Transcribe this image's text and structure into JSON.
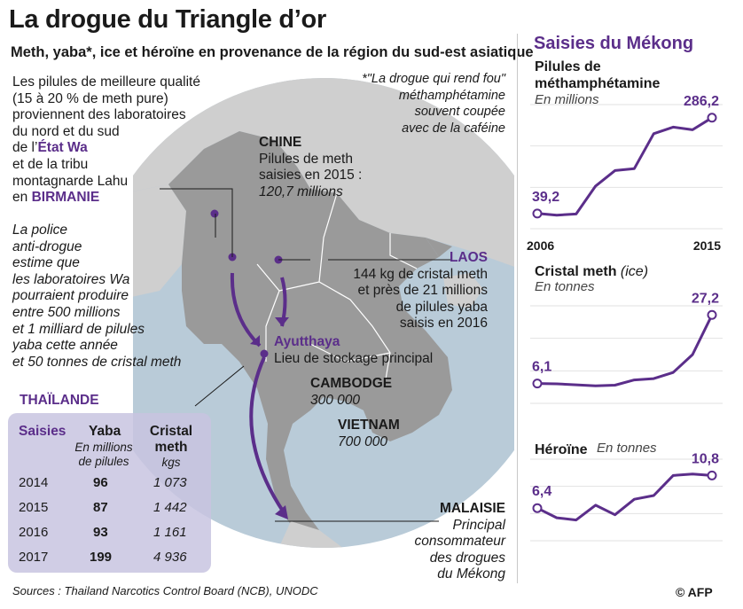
{
  "title": "La drogue du Triangle d’or",
  "subtitle": "Meth, yaba*, ice et héroïne en provenance de la région du sud-est asiatique",
  "left_note": {
    "line1": "Les pilules de meilleure qualité",
    "line2": "(15 à 20 % de meth pure)",
    "line3": "proviennent des laboratoires",
    "line4": "du nord et du sud",
    "line5_prefix": "de l’",
    "line5_kw": "État Wa",
    "line6": "et de la tribu",
    "line7": "montagnarde Lahu",
    "line8_prefix": "en ",
    "line8_kw": "BIRMANIE"
  },
  "footnote": {
    "l1": "*\"La drogue qui rend fou\"",
    "l2": "méthamphétamine",
    "l3": "souvent coupée",
    "l4": "avec de la caféine"
  },
  "police_note": {
    "l1": "La police",
    "l2": "anti-drogue",
    "l3": "estime que",
    "l4": "les laboratoires Wa",
    "l5": "pourraient produire",
    "l6": "entre 500 millions",
    "l7": "et 1 milliard de pilules",
    "l8": "yaba cette année",
    "l9": "et 50 tonnes de cristal meth"
  },
  "map": {
    "chine_name": "CHINE",
    "chine_l1": "Pilules de meth",
    "chine_l2": "saisies en 2015 :",
    "chine_l3": "120,7 millions",
    "laos_name": "LAOS",
    "laos_l1": "144 kg de cristal meth",
    "laos_l2": "et près de 21 millions",
    "laos_l3": "de pilules yaba",
    "laos_l4": "saisis en 2016",
    "ayutthaya_name": "Ayutthaya",
    "ayutthaya_desc": "Lieu de stockage principal",
    "cambodge_name": "CAMBODGE",
    "cambodge_value": "300 000",
    "vietnam_name": "VIETNAM",
    "vietnam_value": "700 000",
    "thailande_name": "THAÏLANDE",
    "malaisie_name": "MALAISIE",
    "malaisie_l1": "Principal",
    "malaisie_l2": "consommateur",
    "malaisie_l3": "des drogues",
    "malaisie_l4": "du Mékong"
  },
  "seizures_table": {
    "col0": "Saisies",
    "col1": "Yaba",
    "col1_sub1": "En millions",
    "col1_sub2": "de pilules",
    "col2": "Cristal",
    "col2b": "meth",
    "col2_sub": "kgs",
    "rows": [
      {
        "year": "2014",
        "yaba": "96",
        "crystal": "1 073"
      },
      {
        "year": "2015",
        "yaba": "87",
        "crystal": "1 442"
      },
      {
        "year": "2016",
        "yaba": "93",
        "crystal": "1 161"
      },
      {
        "year": "2017",
        "yaba": "199",
        "crystal": "4 936"
      }
    ]
  },
  "sources": "Sources : Thailand Narcotics Control Board (NCB), UNODC",
  "copyright": "© AFP",
  "right_title": "Saisies du Mékong",
  "colors": {
    "accent": "#5b2e8a",
    "land": "#9a9a9a",
    "land_other": "#cfcfcf",
    "sea": "#b9cbd8",
    "table_bg": "#c8c4e0"
  },
  "chart_data": [
    {
      "type": "line",
      "title": "Pilules de méthamphétamine",
      "unit": "En millions",
      "x": [
        2006,
        2007,
        2008,
        2009,
        2010,
        2011,
        2012,
        2013,
        2014,
        2015
      ],
      "values": [
        39.2,
        35,
        38,
        110,
        150,
        155,
        245,
        262,
        255,
        286.2
      ],
      "first_label": "39,2",
      "last_label": "286,2",
      "x_start_label": "2006",
      "x_end_label": "2015",
      "ylim": [
        0,
        320
      ]
    },
    {
      "type": "line",
      "title": "Cristal meth",
      "title_suffix": "(ice)",
      "unit": "En tonnes",
      "x": [
        2006,
        2007,
        2008,
        2009,
        2010,
        2011,
        2012,
        2013,
        2014,
        2015
      ],
      "values": [
        6.1,
        6.0,
        5.7,
        5.4,
        5.6,
        7.2,
        7.6,
        9.5,
        15.0,
        27.2
      ],
      "first_label": "6,1",
      "last_label": "27,2",
      "ylim": [
        0,
        30
      ]
    },
    {
      "type": "line",
      "title": "Héroïne",
      "unit": "En tonnes",
      "x": [
        2006,
        2007,
        2008,
        2009,
        2010,
        2011,
        2012,
        2013,
        2014,
        2015
      ],
      "values": [
        6.4,
        5.1,
        4.8,
        6.8,
        5.5,
        7.6,
        8.1,
        10.8,
        11.0,
        10.8
      ],
      "first_label": "6,4",
      "last_label": "10,8",
      "ylim": [
        2,
        13
      ]
    }
  ]
}
